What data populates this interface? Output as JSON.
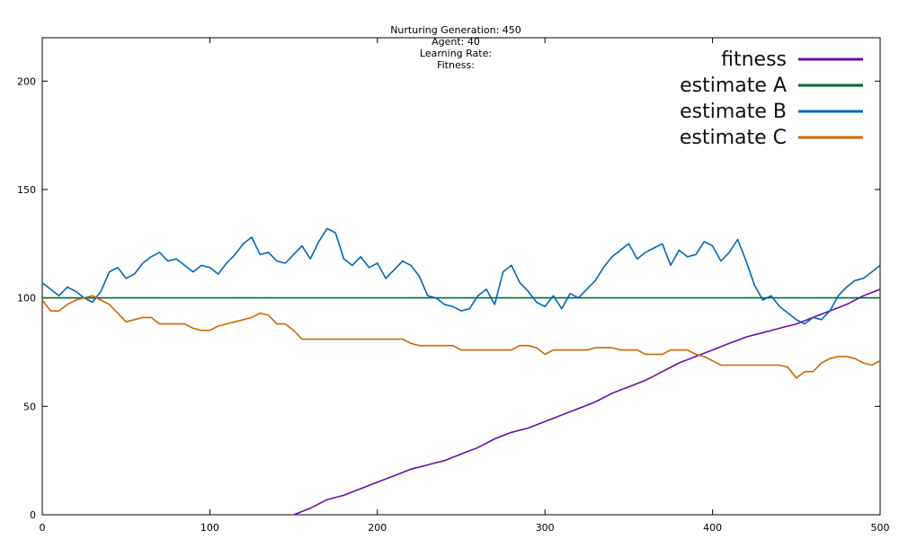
{
  "status": {
    "generation_label": "Nurturing Generation: 450",
    "agent_label": "Agent: 40",
    "learning_rate_label": "Learning Rate:",
    "fitness_label": "Fitness:"
  },
  "chart_data": {
    "type": "line",
    "title": "",
    "xlabel": "",
    "ylabel": "",
    "xlim": [
      0,
      500
    ],
    "ylim": [
      0,
      220
    ],
    "x_ticks": [
      0,
      100,
      200,
      300,
      400,
      500
    ],
    "y_ticks": [
      0,
      50,
      100,
      150,
      200
    ],
    "grid": false,
    "legend_position": "top-right",
    "series": [
      {
        "name": "fitness",
        "color": "#6a0dad",
        "x": [
          150,
          160,
          170,
          180,
          190,
          200,
          210,
          220,
          230,
          240,
          250,
          260,
          270,
          280,
          290,
          300,
          310,
          320,
          330,
          340,
          350,
          360,
          370,
          380,
          390,
          400,
          410,
          420,
          430,
          440,
          450,
          460,
          470,
          480,
          490,
          500
        ],
        "y": [
          0,
          3,
          7,
          9,
          12,
          15,
          18,
          21,
          23,
          25,
          28,
          31,
          35,
          38,
          40,
          43,
          46,
          49,
          52,
          56,
          59,
          62,
          66,
          70,
          73,
          76,
          79,
          82,
          84,
          86,
          88,
          91,
          94,
          97,
          101,
          104
        ]
      },
      {
        "name": "estimate A",
        "color": "#006633",
        "x": [
          0,
          500
        ],
        "y": [
          100,
          100
        ]
      },
      {
        "name": "estimate B",
        "color": "#0066bb",
        "x": [
          0,
          5,
          10,
          15,
          20,
          25,
          30,
          35,
          40,
          45,
          50,
          55,
          60,
          65,
          70,
          75,
          80,
          85,
          90,
          95,
          100,
          105,
          110,
          115,
          120,
          125,
          130,
          135,
          140,
          145,
          150,
          155,
          160,
          165,
          170,
          175,
          180,
          185,
          190,
          195,
          200,
          205,
          210,
          215,
          220,
          225,
          230,
          235,
          240,
          245,
          250,
          255,
          260,
          265,
          270,
          275,
          280,
          285,
          290,
          295,
          300,
          305,
          310,
          315,
          320,
          325,
          330,
          335,
          340,
          345,
          350,
          355,
          360,
          365,
          370,
          375,
          380,
          385,
          390,
          395,
          400,
          405,
          410,
          415,
          420,
          425,
          430,
          435,
          440,
          445,
          450,
          455,
          460,
          465,
          470,
          475,
          480,
          485,
          490,
          495,
          500
        ],
        "y": [
          107,
          104,
          101,
          105,
          103,
          100,
          98,
          103,
          112,
          114,
          109,
          111,
          116,
          119,
          121,
          117,
          118,
          115,
          112,
          115,
          114,
          111,
          116,
          120,
          125,
          128,
          120,
          121,
          117,
          116,
          120,
          124,
          118,
          126,
          132,
          130,
          118,
          115,
          119,
          114,
          116,
          109,
          113,
          117,
          115,
          110,
          101,
          100,
          97,
          96,
          94,
          95,
          101,
          104,
          97,
          112,
          115,
          107,
          103,
          98,
          96,
          101,
          95,
          102,
          100,
          104,
          108,
          114,
          119,
          122,
          125,
          118,
          121,
          123,
          125,
          115,
          122,
          119,
          120,
          126,
          124,
          117,
          121,
          127,
          117,
          106,
          99,
          101,
          96,
          93,
          90,
          88,
          91,
          90,
          94,
          101,
          105,
          108,
          109,
          112,
          115
        ]
      },
      {
        "name": "estimate C",
        "color": "#cc6600",
        "x": [
          0,
          5,
          10,
          15,
          20,
          25,
          30,
          35,
          40,
          45,
          50,
          55,
          60,
          65,
          70,
          75,
          80,
          85,
          90,
          95,
          100,
          105,
          110,
          115,
          120,
          125,
          130,
          135,
          140,
          145,
          150,
          155,
          160,
          165,
          170,
          175,
          180,
          185,
          190,
          195,
          200,
          205,
          210,
          215,
          220,
          225,
          230,
          235,
          240,
          245,
          250,
          255,
          260,
          265,
          270,
          275,
          280,
          285,
          290,
          295,
          300,
          305,
          310,
          315,
          320,
          325,
          330,
          335,
          340,
          345,
          350,
          355,
          360,
          365,
          370,
          375,
          380,
          385,
          390,
          395,
          400,
          405,
          410,
          415,
          420,
          425,
          430,
          435,
          440,
          445,
          450,
          455,
          460,
          465,
          470,
          475,
          480,
          485,
          490,
          495,
          500
        ],
        "y": [
          99,
          94,
          94,
          97,
          99,
          100,
          101,
          99,
          97,
          93,
          89,
          90,
          91,
          91,
          88,
          88,
          88,
          88,
          86,
          85,
          85,
          87,
          88,
          89,
          90,
          91,
          93,
          92,
          88,
          88,
          85,
          81,
          81,
          81,
          81,
          81,
          81,
          81,
          81,
          81,
          81,
          81,
          81,
          81,
          79,
          78,
          78,
          78,
          78,
          78,
          76,
          76,
          76,
          76,
          76,
          76,
          76,
          78,
          78,
          77,
          74,
          76,
          76,
          76,
          76,
          76,
          77,
          77,
          77,
          76,
          76,
          76,
          74,
          74,
          74,
          76,
          76,
          76,
          74,
          73,
          71,
          69,
          69,
          69,
          69,
          69,
          69,
          69,
          69,
          68,
          63,
          66,
          66,
          70,
          72,
          73,
          73,
          72,
          70,
          69,
          71
        ]
      }
    ]
  }
}
